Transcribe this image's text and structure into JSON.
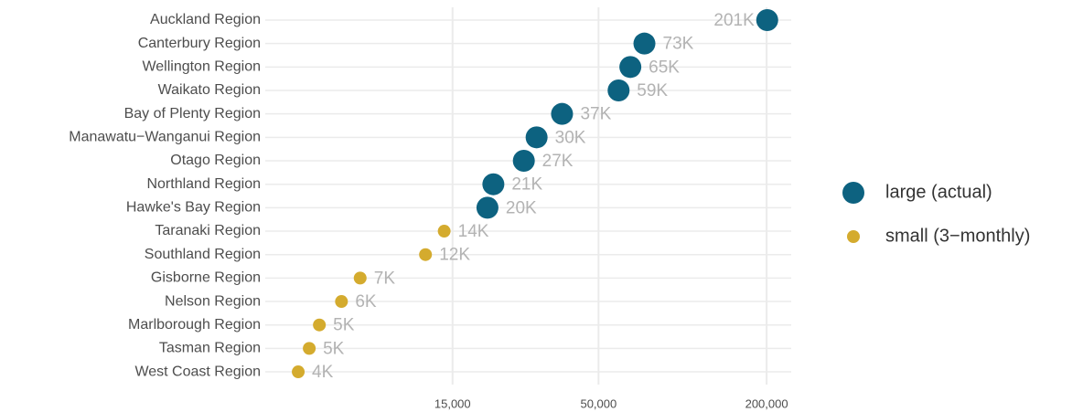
{
  "chart_data": {
    "type": "dot",
    "categories": [
      "Auckland Region",
      "Canterbury Region",
      "Wellington Region",
      "Waikato Region",
      "Bay of Plenty Region",
      "Manawatu−Wanganui Region",
      "Otago Region",
      "Northland Region",
      "Hawke's Bay Region",
      "Taranaki Region",
      "Southland Region",
      "Gisborne Region",
      "Nelson Region",
      "Marlborough Region",
      "Tasman Region",
      "West Coast Region"
    ],
    "series": [
      {
        "name": "large (actual)",
        "color": "#0d6280",
        "values": [
          201000,
          73000,
          65000,
          59000,
          37000,
          30000,
          27000,
          21000,
          20000,
          null,
          null,
          null,
          null,
          null,
          null,
          null
        ],
        "value_labels": [
          "201K",
          "73K",
          "65K",
          "59K",
          "37K",
          "30K",
          "27K",
          "21K",
          "20K",
          null,
          null,
          null,
          null,
          null,
          null,
          null
        ]
      },
      {
        "name": "small (3−monthly)",
        "color": "#d4ab2e",
        "values": [
          null,
          null,
          null,
          null,
          null,
          null,
          null,
          null,
          null,
          14000,
          12000,
          7000,
          6000,
          5000,
          4600,
          4200
        ],
        "value_labels": [
          null,
          null,
          null,
          null,
          null,
          null,
          null,
          null,
          null,
          "14K",
          "12K",
          "7K",
          "6K",
          "5K",
          "5K",
          "4K"
        ]
      }
    ],
    "xlog": true,
    "xlim": [
      3200,
      245000
    ],
    "xticks": [
      {
        "value": 15000,
        "label": "15,000"
      },
      {
        "value": 50000,
        "label": "50,000"
      },
      {
        "value": 200000,
        "label": "200,000"
      }
    ],
    "grid": true,
    "legend": "right"
  }
}
